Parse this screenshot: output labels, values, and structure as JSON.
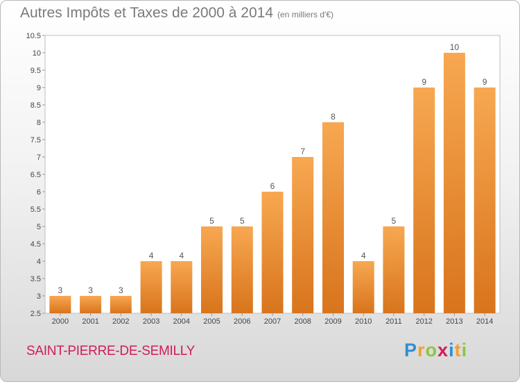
{
  "header": {
    "title": "Autres Impôts et Taxes de 2000 à 2014",
    "unit": "(en milliers d'€)"
  },
  "footer": {
    "city": "SAINT-PIERRE-DE-SEMILLY",
    "brand": "Proxiti"
  },
  "colors": {
    "bar_top": "#f7a851",
    "bar_bottom": "#d8741c",
    "city": "#d01d55"
  },
  "chart_data": {
    "type": "bar",
    "title": "Autres Impôts et Taxes de 2000 à 2014",
    "subtitle": "(en milliers d'€)",
    "categories": [
      "2000",
      "2001",
      "2002",
      "2003",
      "2004",
      "2005",
      "2006",
      "2007",
      "2008",
      "2009",
      "2010",
      "2011",
      "2012",
      "2013",
      "2014"
    ],
    "values": [
      3,
      3,
      3,
      4,
      4,
      5,
      5,
      6,
      7,
      8,
      4,
      5,
      9,
      10,
      9
    ],
    "data_labels": [
      "3",
      "3",
      "3",
      "4",
      "4",
      "5",
      "5",
      "6",
      "7",
      "8",
      "4",
      "5",
      "9",
      "10",
      "9"
    ],
    "y_ticks": [
      "2.5",
      "3",
      "3.5",
      "4",
      "4.5",
      "5",
      "5.5",
      "6",
      "6.5",
      "7",
      "7.5",
      "8",
      "8.5",
      "9",
      "9.5",
      "10",
      "10.5"
    ],
    "ylim": [
      2.5,
      10.5
    ],
    "grid": false,
    "legend": "none"
  }
}
